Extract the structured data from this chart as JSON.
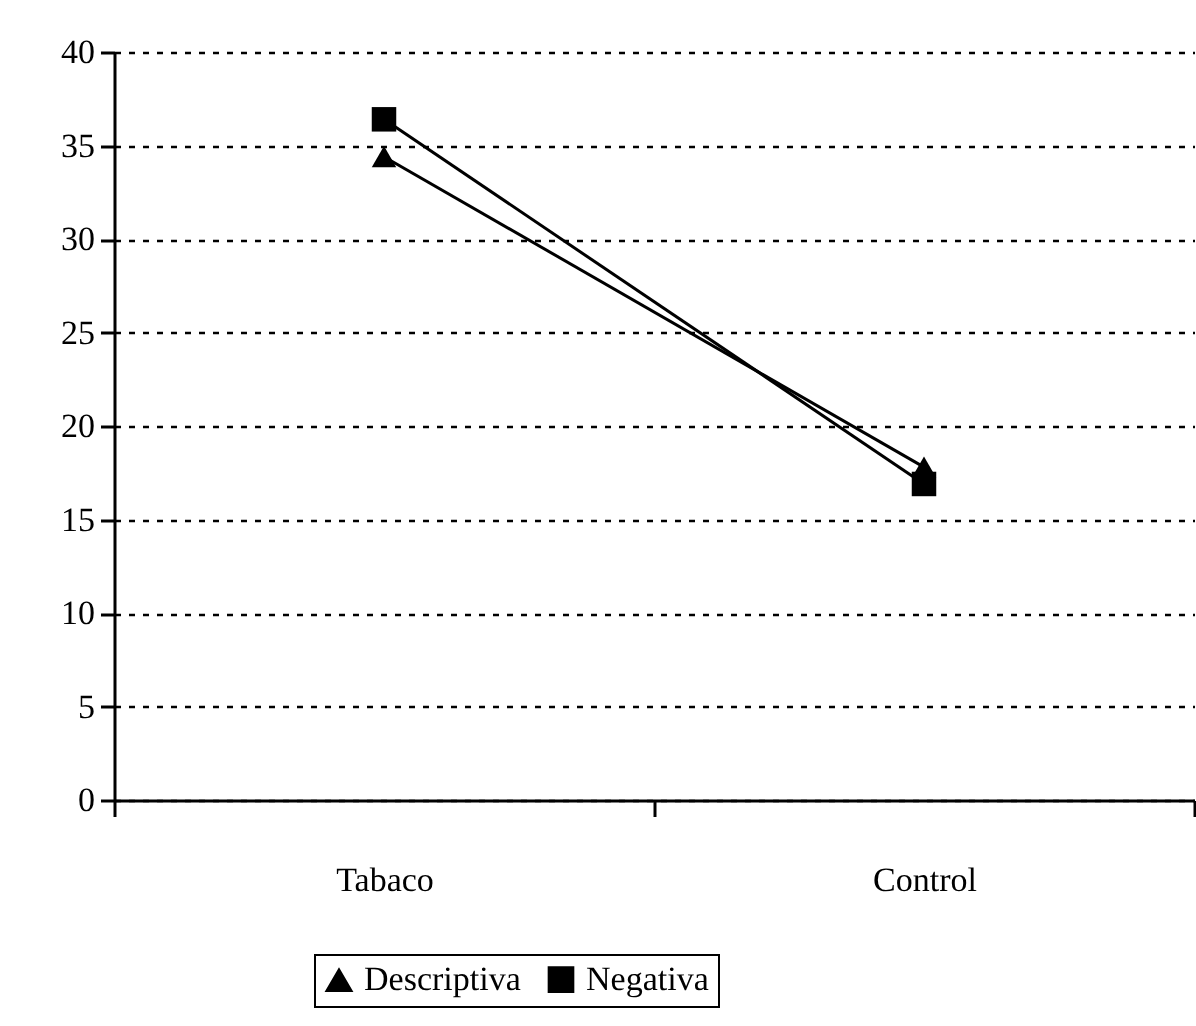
{
  "chart_data": {
    "type": "line",
    "categories": [
      "Tabaco",
      "Control"
    ],
    "series": [
      {
        "name": "Descriptiva",
        "color": "#000000",
        "marker": "triangle",
        "values": [
          34.4,
          17.8
        ]
      },
      {
        "name": "Negativa",
        "color": "#000000",
        "marker": "square",
        "values": [
          36.4,
          16.9
        ]
      }
    ],
    "ylim": [
      0,
      40
    ],
    "yticks": [
      0,
      5,
      10,
      15,
      20,
      25,
      30,
      35,
      40
    ],
    "grid": "y",
    "legend": "bottom",
    "line_style": "solid"
  }
}
